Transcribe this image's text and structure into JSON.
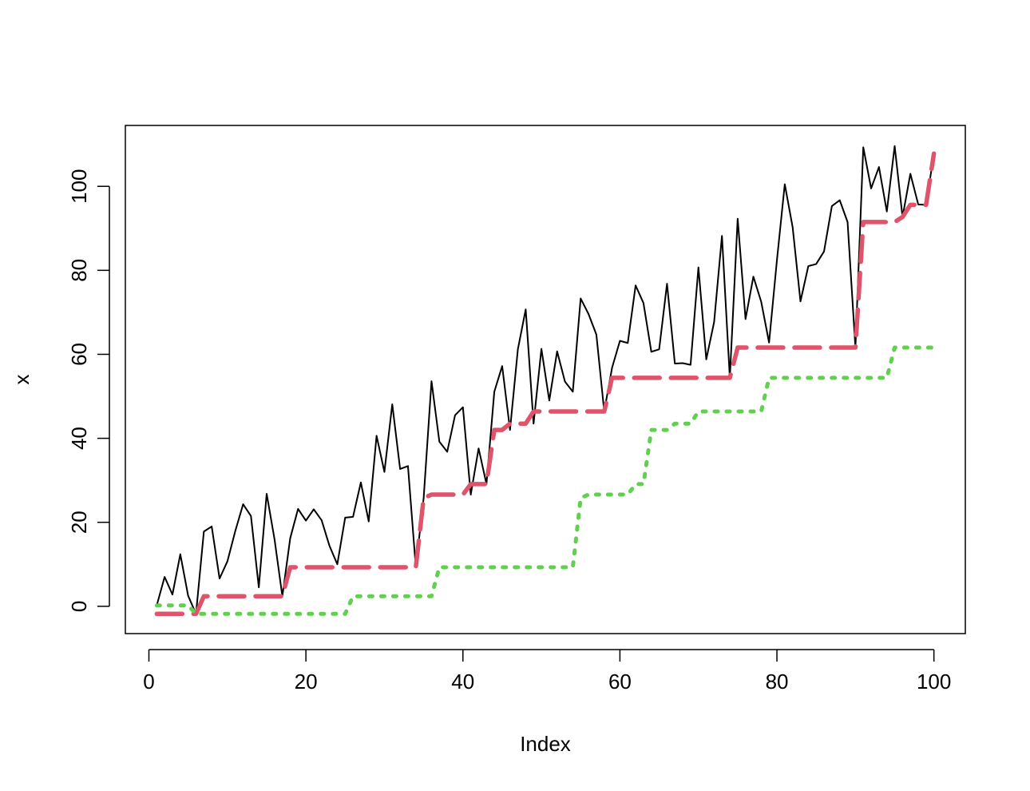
{
  "chart_data": {
    "type": "line",
    "title": "",
    "xlabel": "Index",
    "ylabel": "x",
    "xlim": [
      -3,
      104
    ],
    "ylim": [
      -6.5,
      114.5
    ],
    "x_ticks": [
      0,
      20,
      40,
      60,
      80,
      100
    ],
    "y_ticks": [
      0,
      20,
      40,
      60,
      80,
      100
    ],
    "x_tick_labels": [
      "0",
      "20",
      "40",
      "60",
      "80",
      "100"
    ],
    "y_tick_labels": [
      "0",
      "20",
      "40",
      "60",
      "80",
      "100"
    ],
    "grid": false,
    "legend": "none",
    "series": [
      {
        "style": "solid-thin",
        "color": "#000000",
        "values": [
          0.2,
          7.0,
          2.8,
          12.4,
          2.5,
          -1.8,
          17.8,
          19.0,
          6.6,
          10.7,
          17.9,
          24.3,
          21.5,
          4.5,
          26.8,
          16.0,
          2.4,
          16.2,
          23.2,
          20.4,
          23.1,
          20.5,
          14.4,
          10.0,
          21.1,
          21.3,
          29.5,
          20.2,
          40.6,
          32.0,
          48.1,
          32.7,
          33.4,
          9.3,
          25.8,
          53.6,
          39.2,
          36.8,
          45.5,
          47.4,
          26.6,
          37.6,
          29.1,
          51.1,
          57.2,
          42.0,
          61.2,
          70.7,
          43.5,
          61.3,
          49.0,
          60.7,
          53.5,
          51.1,
          73.3,
          69.6,
          64.7,
          46.4,
          56.8,
          63.2,
          62.7,
          76.4,
          72.2,
          60.6,
          61.2,
          76.8,
          57.8,
          57.9,
          57.5,
          80.7,
          58.8,
          67.7,
          88.2,
          54.4,
          92.3,
          68.4,
          78.5,
          72.5,
          62.8,
          82.4,
          100.5,
          90.3,
          72.6,
          81.0,
          81.5,
          84.5,
          95.3,
          96.7,
          91.5,
          61.6,
          109.3,
          99.5,
          104.6,
          94.0,
          109.6,
          92.7,
          103.0,
          95.7,
          95.6,
          107.8
        ]
      },
      {
        "style": "dashed-thick",
        "color": "#DF536B",
        "values": [
          -1.8,
          -1.8,
          -1.8,
          -1.8,
          -1.8,
          -1.8,
          2.4,
          2.4,
          2.4,
          2.4,
          2.4,
          2.4,
          2.4,
          2.4,
          2.4,
          2.4,
          2.4,
          9.3,
          9.3,
          9.3,
          9.3,
          9.3,
          9.3,
          9.3,
          9.3,
          9.3,
          9.3,
          9.3,
          9.3,
          9.3,
          9.3,
          9.3,
          9.3,
          9.3,
          25.8,
          26.6,
          26.6,
          26.6,
          26.6,
          26.6,
          29.1,
          29.1,
          29.1,
          42.0,
          42.0,
          43.5,
          43.5,
          43.5,
          46.4,
          46.4,
          46.4,
          46.4,
          46.4,
          46.4,
          46.4,
          46.4,
          46.4,
          46.4,
          54.4,
          54.4,
          54.4,
          54.4,
          54.4,
          54.4,
          54.4,
          54.4,
          54.4,
          54.4,
          54.4,
          54.4,
          54.4,
          54.4,
          54.4,
          54.4,
          61.6,
          61.6,
          61.6,
          61.6,
          61.6,
          61.6,
          61.6,
          61.6,
          61.6,
          61.6,
          61.6,
          61.6,
          61.6,
          61.6,
          61.6,
          61.6,
          91.5,
          91.5,
          91.5,
          91.5,
          91.5,
          92.7,
          95.6,
          95.6,
          95.6,
          107.8
        ]
      },
      {
        "style": "dotted-thick",
        "color": "#61D04F",
        "values": [
          0.2,
          0.2,
          0.2,
          0.2,
          0.2,
          -1.8,
          -1.8,
          -1.8,
          -1.8,
          -1.8,
          -1.8,
          -1.8,
          -1.8,
          -1.8,
          -1.8,
          -1.8,
          -1.8,
          -1.8,
          -1.8,
          -1.8,
          -1.8,
          -1.8,
          -1.8,
          -1.8,
          -1.8,
          2.4,
          2.4,
          2.4,
          2.4,
          2.4,
          2.4,
          2.4,
          2.4,
          2.4,
          2.4,
          2.4,
          9.3,
          9.3,
          9.3,
          9.3,
          9.3,
          9.3,
          9.3,
          9.3,
          9.3,
          9.3,
          9.3,
          9.3,
          9.3,
          9.3,
          9.3,
          9.3,
          9.3,
          9.3,
          25.8,
          26.6,
          26.6,
          26.6,
          26.6,
          26.6,
          26.6,
          29.1,
          29.1,
          42.0,
          42.0,
          42.0,
          43.5,
          43.5,
          43.5,
          46.4,
          46.4,
          46.4,
          46.4,
          46.4,
          46.4,
          46.4,
          46.4,
          46.4,
          54.4,
          54.4,
          54.4,
          54.4,
          54.4,
          54.4,
          54.4,
          54.4,
          54.4,
          54.4,
          54.4,
          54.4,
          54.4,
          54.4,
          54.4,
          54.4,
          61.6,
          61.6,
          61.6,
          61.6,
          61.6,
          61.6
        ]
      }
    ]
  }
}
